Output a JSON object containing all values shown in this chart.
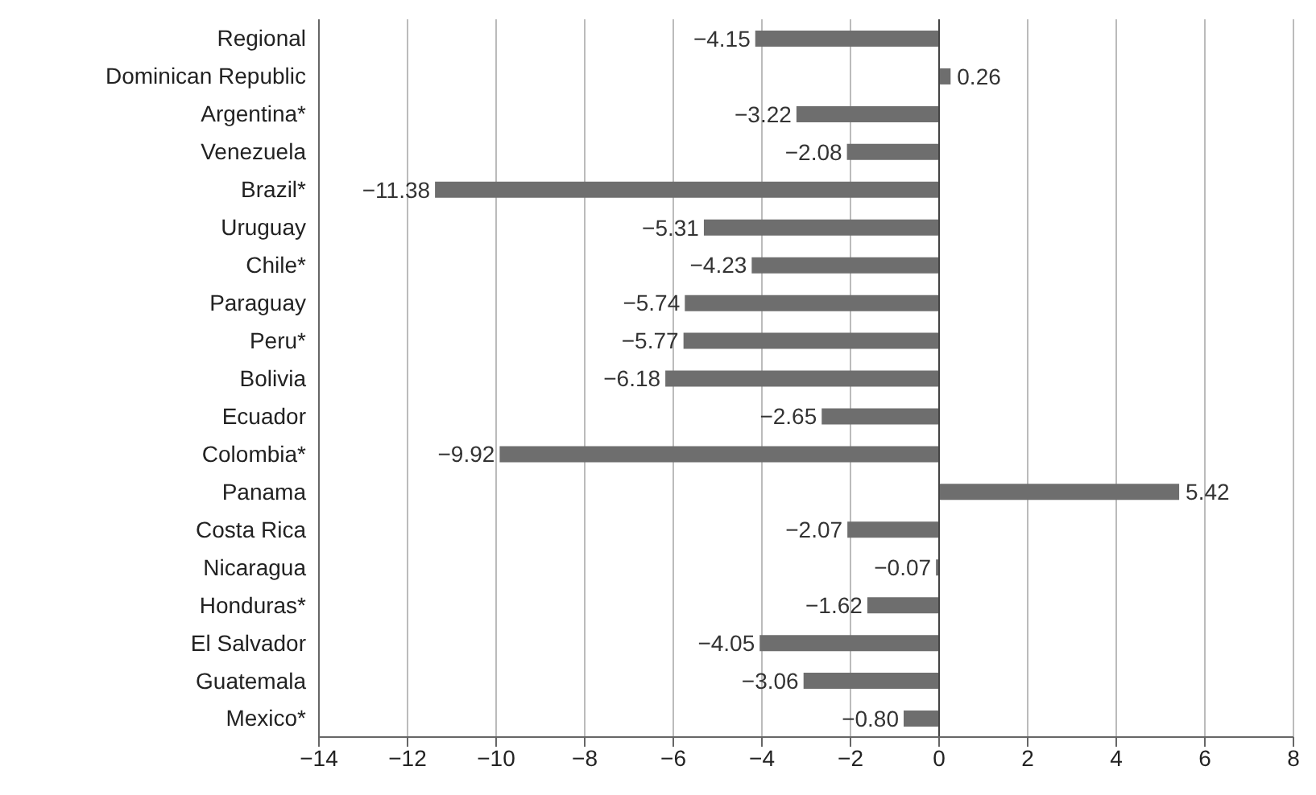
{
  "chart_data": {
    "type": "bar",
    "orientation": "horizontal",
    "categories": [
      "Regional",
      "Dominican Republic",
      "Argentina*",
      "Venezuela",
      "Brazil*",
      "Uruguay",
      "Chile*",
      "Paraguay",
      "Peru*",
      "Bolivia",
      "Ecuador",
      "Colombia*",
      "Panama",
      "Costa Rica",
      "Nicaragua",
      "Honduras*",
      "El Salvador",
      "Guatemala",
      "Mexico*"
    ],
    "values": [
      -4.15,
      0.26,
      -3.22,
      -2.08,
      -11.38,
      -5.31,
      -4.23,
      -5.74,
      -5.77,
      -6.18,
      -2.65,
      -9.92,
      5.42,
      -2.07,
      -0.07,
      -1.62,
      -4.05,
      -3.06,
      -0.8
    ],
    "value_labels": [
      "−4.15",
      "0.26",
      "−3.22",
      "−2.08",
      "−11.38",
      "−5.31",
      "−4.23",
      "−5.74",
      "−5.77",
      "−6.18",
      "−2.65",
      "−9.92",
      "5.42",
      "−2.07",
      "−0.07",
      "−1.62",
      "−4.05",
      "−3.06",
      "−0.80"
    ],
    "color": "#6e6e6e",
    "xlim": [
      -14,
      8
    ],
    "xticks": [
      {
        "value": -14,
        "label": "−14"
      },
      {
        "value": -12,
        "label": "−12"
      },
      {
        "value": -10,
        "label": "−10"
      },
      {
        "value": -8,
        "label": "−8"
      },
      {
        "value": -6,
        "label": "−6"
      },
      {
        "value": -4,
        "label": "−4"
      },
      {
        "value": -2,
        "label": "−2"
      },
      0,
      2,
      4,
      6,
      8
    ],
    "grid": "x"
  }
}
